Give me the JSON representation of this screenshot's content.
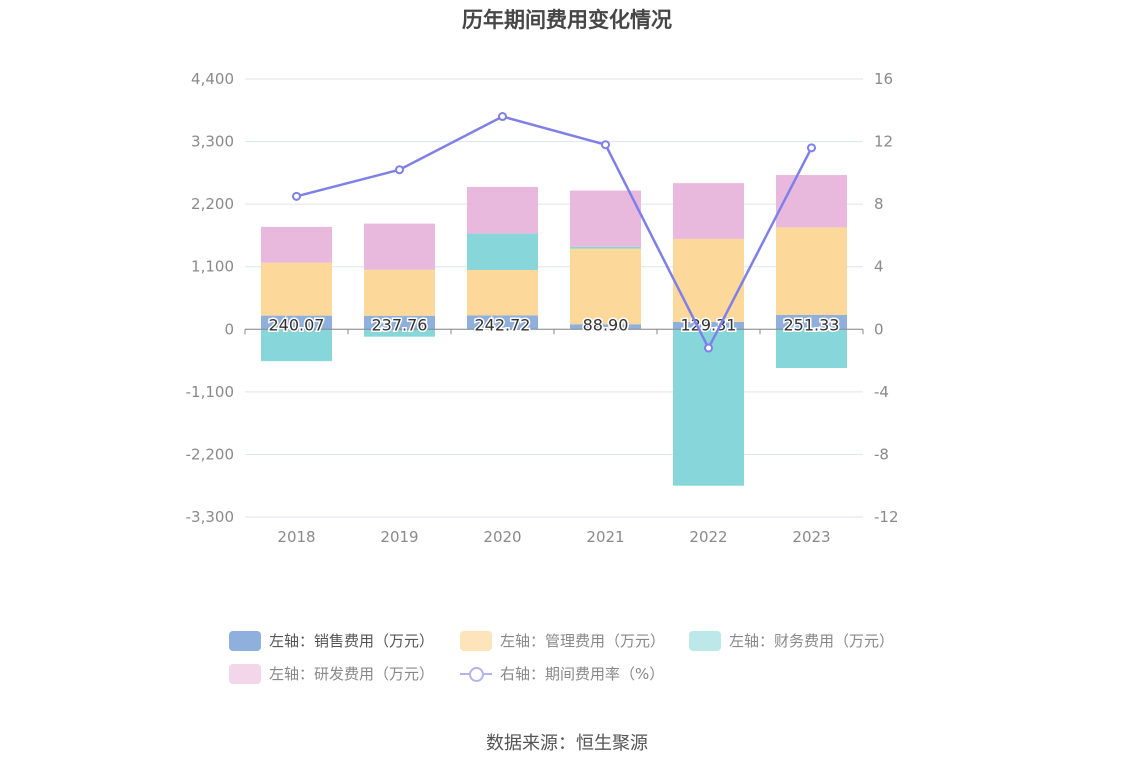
{
  "chart_data": {
    "type": "bar",
    "title": "历年期间费用变化情况",
    "categories": [
      "2018",
      "2019",
      "2020",
      "2021",
      "2022",
      "2023"
    ],
    "left_axis": {
      "ticks": [
        "4,400",
        "3,300",
        "2,200",
        "1,100",
        "0",
        "-1,100",
        "-2,200",
        "-3,300"
      ],
      "ylim": [
        -3300,
        4400
      ]
    },
    "right_axis": {
      "ticks": [
        "16",
        "12",
        "8",
        "4",
        "0",
        "-4",
        "-8",
        "-12"
      ],
      "ylim": [
        -12,
        16
      ]
    },
    "series": [
      {
        "name": "左轴：销售费用（万元）",
        "type": "bar",
        "color": "#8fafdc",
        "values": [
          240.07,
          237.76,
          242.72,
          88.9,
          129.31,
          251.33
        ],
        "labels": [
          "240.07",
          "237.76",
          "242.72",
          "88.90",
          "129.31",
          "251.33"
        ]
      },
      {
        "name": "左轴：管理费用（万元）",
        "type": "bar",
        "color": "#fdd89b",
        "values": [
          930,
          810,
          800,
          1330,
          1460,
          1540
        ]
      },
      {
        "name": "左轴：财务费用（万元）",
        "type": "bar",
        "color": "#86d6da",
        "values": [
          -560,
          -130,
          640,
          30,
          -2750,
          -680
        ]
      },
      {
        "name": "左轴：研发费用（万元）",
        "type": "bar",
        "color": "#e8b9dc",
        "values": [
          630,
          810,
          820,
          990,
          980,
          920
        ]
      },
      {
        "name": "右轴：期间费用率（%）",
        "type": "line",
        "color": "#7f7fea",
        "values": [
          8.5,
          10.2,
          13.6,
          11.8,
          -1.2,
          11.6
        ]
      }
    ],
    "grid": true,
    "legend_position": "bottom"
  },
  "legend": [
    {
      "label": "左轴：销售费用（万元）",
      "color": "#8fafdc",
      "kind": "bar"
    },
    {
      "label": "左轴：管理费用（万元）",
      "color": "#fde4bb",
      "kind": "bar"
    },
    {
      "label": "左轴：财务费用（万元）",
      "color": "#bde8ea",
      "kind": "bar"
    },
    {
      "label": "左轴：研发费用（万元）",
      "color": "#f3d6ea",
      "kind": "bar"
    },
    {
      "label": "右轴：期间费用率（%）",
      "color": "#b3b3f0",
      "kind": "line"
    }
  ],
  "source": "数据来源：恒生聚源"
}
